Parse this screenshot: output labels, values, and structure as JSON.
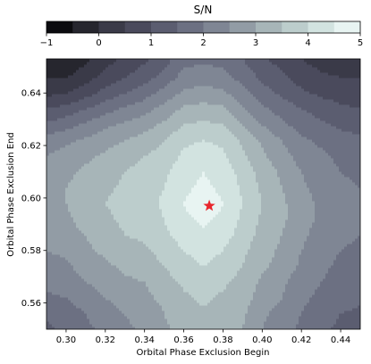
{
  "chart_data": {
    "type": "heatmap",
    "subtype": "filled-contour",
    "xlabel": "Orbital Phase Exclusion Begin",
    "ylabel": "Orbital Phase Exclusion End",
    "xlim": [
      0.29,
      0.45
    ],
    "ylim": [
      0.55,
      0.653
    ],
    "x_ticks": [
      0.3,
      0.32,
      0.34,
      0.36,
      0.38,
      0.4,
      0.42,
      0.44
    ],
    "x_tick_labels": [
      "0.30",
      "0.32",
      "0.34",
      "0.36",
      "0.38",
      "0.40",
      "0.42",
      "0.44"
    ],
    "y_ticks": [
      0.56,
      0.58,
      0.6,
      0.62,
      0.64
    ],
    "y_tick_labels": [
      "0.56",
      "0.58",
      "0.60",
      "0.62",
      "0.64"
    ],
    "colorbar": {
      "title": "S/N",
      "orientation": "horizontal",
      "location": "top",
      "range": [
        -1,
        5
      ],
      "levels": [
        -1,
        -0.5,
        0,
        0.5,
        1,
        1.5,
        2,
        2.5,
        3,
        3.5,
        4,
        4.5,
        5
      ],
      "ticks": [
        -1,
        0,
        1,
        2,
        3,
        4,
        5
      ],
      "tick_labels": [
        "−1",
        "0",
        "1",
        "2",
        "3",
        "4",
        "5"
      ],
      "colors": [
        "#0b0b0f",
        "#26262e",
        "#3a3a48",
        "#4a4a5c",
        "#5b5d70",
        "#6c7082",
        "#7f8694",
        "#929ca5",
        "#a7b5b8",
        "#bccdcc",
        "#d2e3e0",
        "#e8f4f2"
      ]
    },
    "x": [
      0.29,
      0.3,
      0.31,
      0.32,
      0.33,
      0.34,
      0.35,
      0.36,
      0.37,
      0.38,
      0.39,
      0.4,
      0.41,
      0.42,
      0.43,
      0.44,
      0.45
    ],
    "y": [
      0.55,
      0.556,
      0.562,
      0.568,
      0.574,
      0.58,
      0.586,
      0.592,
      0.598,
      0.604,
      0.61,
      0.616,
      0.622,
      0.628,
      0.634,
      0.64,
      0.646,
      0.653
    ],
    "z": [
      [
        1.4,
        1.6,
        1.9,
        2.1,
        2.4,
        2.6,
        2.9,
        3.2,
        3.3,
        3.2,
        3.0,
        2.5,
        2.2,
        1.9,
        1.6,
        1.4,
        1.3
      ],
      [
        1.6,
        1.8,
        2.0,
        2.3,
        2.5,
        2.7,
        3.0,
        3.3,
        3.4,
        3.3,
        3.1,
        2.6,
        2.3,
        2.0,
        1.7,
        1.5,
        1.4
      ],
      [
        1.9,
        2.0,
        2.2,
        2.5,
        2.7,
        2.9,
        3.1,
        3.4,
        3.6,
        3.4,
        3.2,
        2.8,
        2.5,
        2.1,
        1.9,
        1.7,
        1.6
      ],
      [
        2.1,
        2.3,
        2.5,
        2.7,
        2.9,
        3.0,
        3.3,
        3.6,
        3.8,
        3.6,
        3.3,
        2.9,
        2.6,
        2.2,
        2.0,
        1.8,
        1.7
      ],
      [
        2.3,
        2.4,
        2.7,
        2.9,
        3.1,
        3.2,
        3.5,
        3.8,
        4.0,
        3.8,
        3.5,
        3.1,
        2.8,
        2.4,
        2.1,
        1.9,
        1.8
      ],
      [
        2.5,
        2.6,
        2.9,
        3.1,
        3.3,
        3.4,
        3.7,
        4.0,
        4.2,
        4.0,
        3.6,
        3.2,
        2.9,
        2.5,
        2.2,
        2.0,
        1.9
      ],
      [
        2.6,
        2.8,
        3.0,
        3.3,
        3.5,
        3.6,
        3.9,
        4.2,
        4.4,
        4.2,
        3.8,
        3.3,
        3.0,
        2.6,
        2.3,
        2.1,
        2.0
      ],
      [
        2.8,
        2.9,
        3.2,
        3.4,
        3.6,
        3.7,
        4.0,
        4.4,
        4.6,
        4.4,
        3.9,
        3.4,
        3.1,
        2.7,
        2.4,
        2.2,
        2.1
      ],
      [
        2.9,
        3.0,
        3.3,
        3.5,
        3.7,
        3.8,
        4.1,
        4.5,
        4.8,
        4.5,
        4.0,
        3.5,
        3.1,
        2.7,
        2.4,
        2.2,
        2.1
      ],
      [
        2.8,
        3.0,
        3.2,
        3.4,
        3.6,
        3.8,
        4.0,
        4.4,
        4.6,
        4.4,
        3.9,
        3.4,
        3.0,
        2.6,
        2.3,
        2.1,
        2.0
      ],
      [
        2.7,
        2.9,
        3.1,
        3.3,
        3.5,
        3.7,
        3.9,
        4.3,
        4.5,
        4.3,
        3.8,
        3.3,
        2.9,
        2.5,
        2.2,
        2.0,
        1.9
      ],
      [
        2.5,
        2.7,
        2.9,
        3.1,
        3.3,
        3.5,
        3.7,
        4.1,
        4.3,
        4.1,
        3.6,
        3.1,
        2.7,
        2.3,
        2.1,
        1.9,
        1.8
      ],
      [
        2.2,
        2.4,
        2.6,
        2.8,
        3.0,
        3.2,
        3.5,
        3.9,
        4.0,
        3.9,
        3.4,
        2.9,
        2.5,
        2.1,
        1.9,
        1.7,
        1.6
      ],
      [
        1.6,
        1.8,
        2.1,
        2.4,
        2.6,
        2.8,
        3.1,
        3.5,
        3.6,
        3.5,
        3.0,
        2.5,
        2.1,
        1.8,
        1.6,
        1.4,
        1.3
      ],
      [
        1.0,
        1.2,
        1.5,
        1.8,
        2.1,
        2.3,
        2.7,
        3.1,
        3.2,
        3.1,
        2.6,
        2.1,
        1.8,
        1.5,
        1.3,
        1.1,
        1.0
      ],
      [
        0.4,
        0.5,
        0.8,
        1.2,
        1.5,
        1.8,
        2.2,
        2.6,
        2.7,
        2.6,
        2.2,
        1.7,
        1.4,
        1.1,
        0.9,
        0.8,
        0.7
      ],
      [
        0.0,
        0.0,
        0.3,
        0.7,
        1.0,
        1.3,
        1.7,
        2.2,
        2.3,
        2.2,
        1.8,
        1.4,
        1.1,
        0.8,
        0.6,
        0.5,
        0.5
      ],
      [
        -0.4,
        -0.5,
        -0.1,
        0.3,
        0.6,
        0.9,
        1.3,
        1.8,
        1.9,
        1.8,
        1.5,
        1.1,
        0.8,
        0.5,
        0.3,
        0.2,
        0.2
      ]
    ],
    "marker": {
      "shape": "star",
      "x": 0.373,
      "y": 0.597,
      "color": "#e8262d"
    }
  }
}
